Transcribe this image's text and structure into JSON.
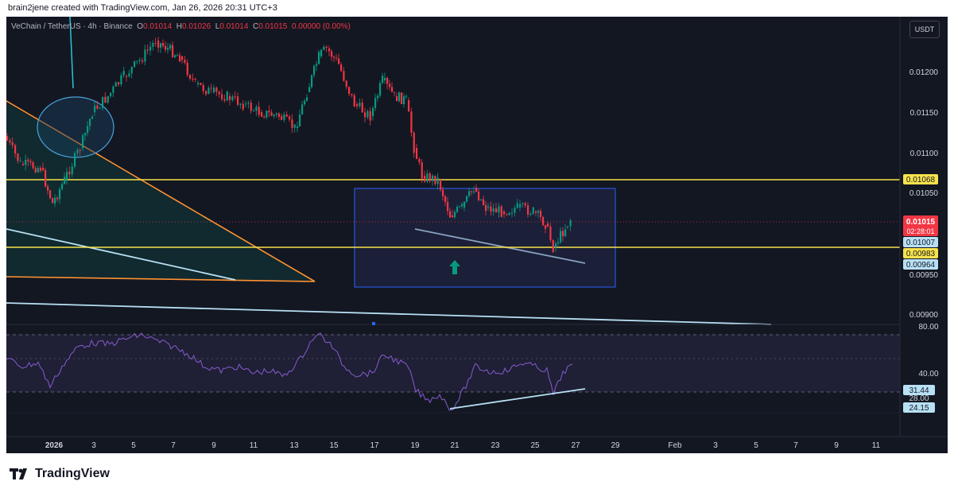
{
  "header": {
    "attribution": "brain2jene created with TradingView.com, Jan 26, 2026 20:31 UTC+3"
  },
  "symbol_bar": {
    "symbol": "VeChain / TetherUS · 4h · Binance",
    "open_label": "O",
    "open_value": "0.01014",
    "high_label": "H",
    "high_value": "0.01026",
    "low_label": "L",
    "low_value": "0.01014",
    "close_label": "C",
    "close_value": "0.01015",
    "change": "0.00000 (0.00%)"
  },
  "currency_button": "USDT",
  "price_axis": {
    "ticks": [
      "0.01200",
      "0.01150",
      "0.01100",
      "0.01050",
      "0.00950",
      "0.00900"
    ]
  },
  "price_badges": {
    "yellow_top": "0.01068",
    "current_price": "0.01015",
    "countdown": "02:28:01",
    "light_blue_1": "0.01007",
    "yellow_bottom": "0.00983",
    "light_blue_2": "0.00964"
  },
  "rsi_axis": {
    "ticks": [
      "80.00",
      "40.00"
    ],
    "badge_rsi": "31.44",
    "badge_mid": "28.00",
    "badge_low": "24.15"
  },
  "time_axis": {
    "ticks": [
      "2026",
      "3",
      "5",
      "7",
      "9",
      "11",
      "13",
      "15",
      "17",
      "19",
      "21",
      "23",
      "25",
      "27",
      "29",
      "Feb",
      "3",
      "5",
      "7",
      "9",
      "11"
    ]
  },
  "footer": {
    "brand": "TradingView"
  },
  "colors": {
    "background": "#131722",
    "up": "#089981",
    "down": "#f23645",
    "support": "#f7e24c",
    "trendline": "#b8e0f5",
    "wedge": "#ff9232",
    "rsi": "#7e57c2",
    "box": "#2962ff"
  },
  "icons": [
    "arrow-up-icon",
    "tradingview-logo-icon"
  ]
}
